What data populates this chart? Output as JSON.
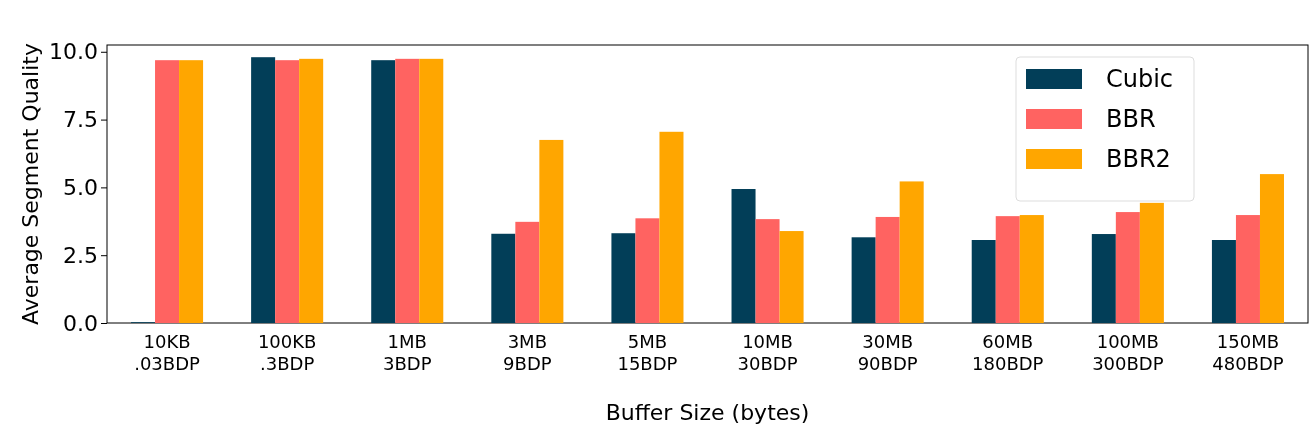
{
  "chart_data": {
    "type": "bar",
    "xlabel": "Buffer Size (bytes)",
    "ylabel": "Average Segment Quality",
    "categories": [
      "10KB\n.03BDP",
      "100KB\n.3BDP",
      "1MB\n3BDP",
      "3MB\n9BDP",
      "5MB\n15BDP",
      "10MB\n30BDP",
      "30MB\n90BDP",
      "60MB\n180BDP",
      "100MB\n300BDP",
      "150MB\n480BDP"
    ],
    "series": [
      {
        "name": "Cubic",
        "color": "#023e58",
        "values": [
          0.03,
          9.8,
          9.69,
          3.29,
          3.31,
          4.94,
          3.16,
          3.06,
          3.28,
          3.06
        ]
      },
      {
        "name": "BBR",
        "color": "#ff6361",
        "values": [
          9.69,
          9.69,
          9.74,
          3.73,
          3.86,
          3.83,
          3.91,
          3.94,
          4.09,
          3.98
        ]
      },
      {
        "name": "BBR2",
        "color": "#ffa600",
        "values": [
          9.69,
          9.74,
          9.74,
          6.75,
          7.05,
          3.39,
          5.22,
          3.98,
          4.43,
          5.49
        ]
      }
    ],
    "ylim": [
      0,
      10.25
    ],
    "yticks": [
      {
        "value": 0,
        "label": "0.0"
      },
      {
        "value": 2.5,
        "label": "2.5"
      },
      {
        "value": 5,
        "label": "5.0"
      },
      {
        "value": 7.5,
        "label": "7.5"
      },
      {
        "value": 10,
        "label": "10.0"
      }
    ],
    "legend": "top right"
  }
}
